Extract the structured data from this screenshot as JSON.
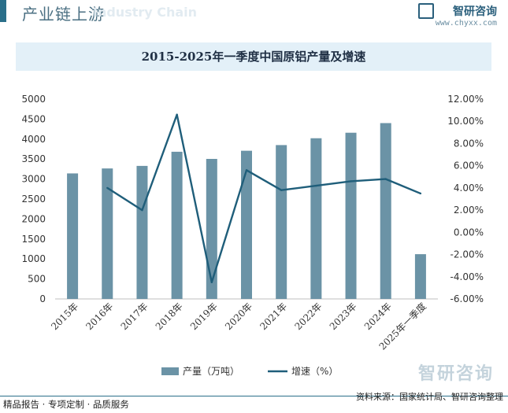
{
  "header": {
    "title": "产业链上游",
    "ghost_text": "Industry Chain"
  },
  "brand": {
    "name": "智研咨询",
    "url": "www.chyxx.com"
  },
  "watermark": "智研咨询",
  "footer": {
    "left": "精品报告 · 专项定制 · 品质服务",
    "source": "资料来源：国家统计局、智研咨询整理"
  },
  "colors": {
    "bar": "#6b93a6",
    "line": "#1f5e7a",
    "title_bg": "#e3f0f8",
    "header_accent": "#2a6f8a"
  },
  "chart_data": {
    "type": "bar",
    "title": "2015-2025年一季度中国原铝产量及增速",
    "categories": [
      "2015年",
      "2016年",
      "2017年",
      "2018年",
      "2019年",
      "2020年",
      "2021年",
      "2022年",
      "2023年",
      "2024年",
      "2025年一季度"
    ],
    "series": [
      {
        "name": "产量（万吨）",
        "type": "bar",
        "axis": "left",
        "values": [
          3141,
          3265,
          3329,
          3683,
          3504,
          3708,
          3850,
          4021,
          4159,
          4400,
          1120
        ]
      },
      {
        "name": "增速（%）",
        "type": "line",
        "axis": "right",
        "values": [
          null,
          4.0,
          2.0,
          10.6,
          -4.5,
          5.6,
          3.8,
          4.2,
          4.6,
          4.8,
          3.5
        ]
      }
    ],
    "y_left": {
      "min": 0,
      "max": 5000,
      "step": 500,
      "ticks": [
        "0",
        "500",
        "1000",
        "1500",
        "2000",
        "2500",
        "3000",
        "3500",
        "4000",
        "4500",
        "5000"
      ]
    },
    "y_right": {
      "min": -6,
      "max": 12,
      "step": 2,
      "ticks": [
        "-6.00%",
        "-4.00%",
        "-2.00%",
        "0.00%",
        "2.00%",
        "4.00%",
        "6.00%",
        "8.00%",
        "10.00%",
        "12.00%"
      ]
    },
    "legend_position": "bottom",
    "grid": false
  }
}
